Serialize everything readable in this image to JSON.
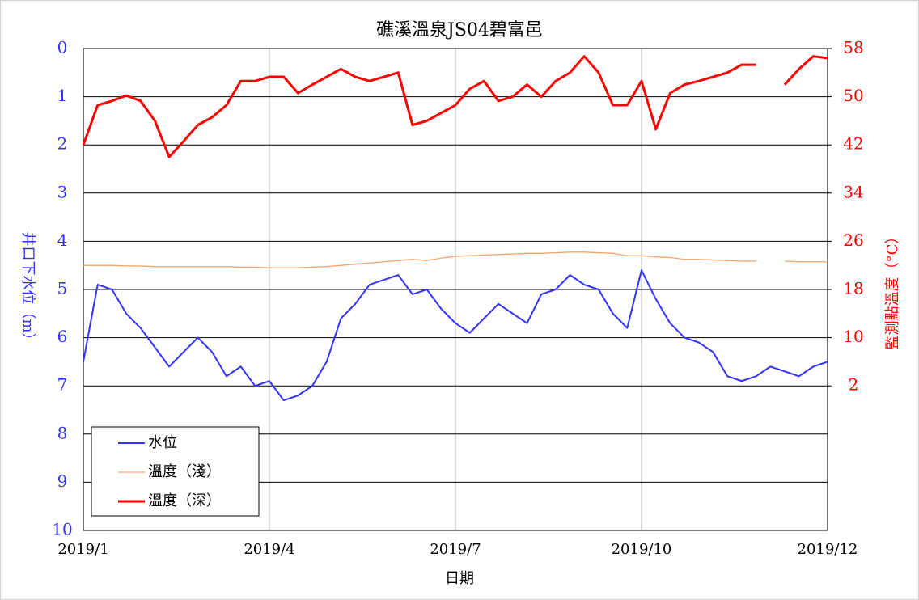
{
  "chart_data": {
    "type": "line",
    "title": "礁溪溫泉JS04碧富邑",
    "x_label": "日期",
    "y_label": "井口下水位（m）",
    "y2_label": "監測點溫度（°C）",
    "xlim": [
      0,
      364
    ],
    "xticks": [
      {
        "value": 0,
        "label": "2019/1"
      },
      {
        "value": 91,
        "label": "2019/4"
      },
      {
        "value": 182,
        "label": "2019/7"
      },
      {
        "value": 273,
        "label": "2019/10"
      },
      {
        "value": 364,
        "label": "2019/12"
      }
    ],
    "ylim": [
      0,
      10
    ],
    "y_inverted": true,
    "yticks": [
      0,
      1,
      2,
      3,
      4,
      5,
      6,
      7,
      8,
      9,
      10
    ],
    "y2lim": [
      -22,
      58
    ],
    "y2ticks": [
      2,
      10,
      18,
      26,
      34,
      42,
      50,
      58
    ],
    "grid": true,
    "legend": "lower left",
    "x": [
      0,
      7,
      14,
      21,
      28,
      35,
      42,
      49,
      56,
      63,
      70,
      77,
      84,
      91,
      98,
      105,
      112,
      119,
      126,
      133,
      140,
      147,
      154,
      161,
      168,
      175,
      182,
      189,
      196,
      203,
      210,
      217,
      224,
      231,
      238,
      245,
      252,
      259,
      266,
      273,
      280,
      287,
      294,
      301,
      308,
      315,
      322,
      329,
      336,
      343,
      350,
      357,
      364
    ],
    "series": [
      {
        "name": "水位",
        "color": "#3333ff",
        "axis": "y",
        "values": [
          6.5,
          4.9,
          5.0,
          5.5,
          5.8,
          6.2,
          6.6,
          6.3,
          6.0,
          6.3,
          6.8,
          6.6,
          7.0,
          6.9,
          7.3,
          7.2,
          7.0,
          6.5,
          5.6,
          5.3,
          4.9,
          4.8,
          4.7,
          5.1,
          5.0,
          5.4,
          5.7,
          5.9,
          5.6,
          5.3,
          5.5,
          5.7,
          5.1,
          5.0,
          4.7,
          4.9,
          5.0,
          5.5,
          5.8,
          4.6,
          5.2,
          5.7,
          6.0,
          6.1,
          6.3,
          6.8,
          6.9,
          6.8,
          6.6,
          6.7,
          6.8,
          6.6,
          6.5
        ]
      },
      {
        "name": "溫度（淺）",
        "color": "#f4a46a",
        "axis": "y2",
        "values": [
          22.0,
          22.0,
          22.0,
          21.9,
          21.9,
          21.8,
          21.8,
          21.8,
          21.8,
          21.8,
          21.8,
          21.7,
          21.7,
          21.6,
          21.6,
          21.6,
          21.7,
          21.8,
          22.0,
          22.2,
          22.4,
          22.6,
          22.8,
          23.0,
          22.8,
          23.2,
          23.5,
          23.6,
          23.7,
          23.8,
          23.9,
          24.0,
          24.0,
          24.1,
          24.2,
          24.2,
          24.1,
          24.0,
          23.6,
          23.6,
          23.4,
          23.3,
          23.0,
          23.0,
          22.9,
          22.8,
          22.7,
          22.7,
          null,
          22.7,
          22.6,
          22.6,
          22.6
        ]
      },
      {
        "name": "溫度（深）",
        "color": "#ff0000",
        "axis": "y2",
        "values": [
          42.0,
          48.6,
          49.3,
          50.2,
          49.3,
          46.0,
          40.0,
          42.6,
          45.3,
          46.6,
          48.6,
          52.6,
          52.6,
          53.3,
          53.3,
          50.6,
          52.0,
          53.3,
          54.6,
          53.3,
          52.6,
          53.3,
          54.0,
          45.3,
          46.0,
          47.3,
          48.6,
          51.3,
          52.6,
          49.3,
          50.0,
          52.0,
          50.0,
          52.6,
          54.0,
          56.7,
          54.0,
          48.6,
          48.6,
          52.6,
          44.6,
          50.6,
          52.0,
          52.6,
          53.3,
          54.0,
          55.3,
          55.3,
          null,
          52.0,
          54.6,
          56.7,
          56.4
        ]
      }
    ]
  }
}
